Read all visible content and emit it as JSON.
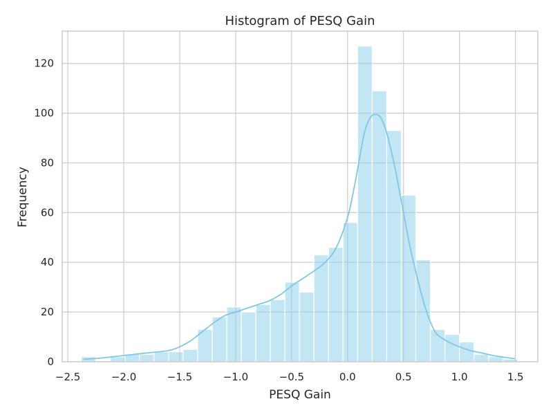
{
  "chart_data": {
    "type": "bar",
    "title": "Histogram of PESQ Gain",
    "xlabel": "PESQ Gain",
    "ylabel": "Frequency",
    "xlim": [
      -2.55,
      1.7
    ],
    "ylim": [
      0,
      133
    ],
    "grid": true,
    "legend": "none",
    "colors": {
      "bar_fill": "#87CEEB",
      "bar_stroke": "#ffffff",
      "kde_line": "#7EC8E3",
      "grid": "#cccccc",
      "frame": "#cccccc"
    },
    "x_ticks": [
      -2.5,
      -2.0,
      -1.5,
      -1.0,
      -0.5,
      0.0,
      0.5,
      1.0,
      1.5
    ],
    "x_tick_labels": [
      "−2.5",
      "−2.0",
      "−1.5",
      "−1.0",
      "−0.5",
      "0.0",
      "0.5",
      "1.0",
      "1.5"
    ],
    "y_ticks": [
      0,
      20,
      40,
      60,
      80,
      100,
      120
    ],
    "y_tick_labels": [
      "0",
      "20",
      "40",
      "60",
      "80",
      "100",
      "120"
    ],
    "bins": {
      "start": -2.38,
      "width": 0.13,
      "counts": [
        2,
        0,
        2,
        3,
        3,
        4,
        4,
        5,
        13,
        18,
        22,
        20,
        23,
        25,
        32,
        28,
        43,
        46,
        56,
        127,
        109,
        93,
        67,
        41,
        13,
        11,
        8,
        3,
        2,
        1
      ]
    },
    "kde": {
      "x": [
        -2.36,
        -2.2,
        -2.0,
        -1.8,
        -1.6,
        -1.5,
        -1.4,
        -1.3,
        -1.2,
        -1.1,
        -1.0,
        -0.9,
        -0.8,
        -0.7,
        -0.6,
        -0.5,
        -0.4,
        -0.3,
        -0.2,
        -0.1,
        0.0,
        0.05,
        0.1,
        0.15,
        0.2,
        0.25,
        0.3,
        0.35,
        0.4,
        0.45,
        0.5,
        0.55,
        0.6,
        0.65,
        0.7,
        0.75,
        0.8,
        0.9,
        1.0,
        1.1,
        1.2,
        1.3,
        1.4,
        1.5
      ],
      "y": [
        1,
        1.5,
        2.5,
        3.5,
        4.5,
        6,
        8.5,
        12,
        15.5,
        18.5,
        20,
        21.5,
        23,
        24.5,
        27,
        30.5,
        33.5,
        36.5,
        40,
        46,
        58,
        68,
        80,
        92,
        98,
        99.5,
        98,
        92,
        83,
        72,
        60,
        48,
        38,
        29,
        21,
        15,
        11,
        8,
        6,
        4.5,
        3.5,
        2.5,
        1.8,
        1.2
      ]
    }
  }
}
